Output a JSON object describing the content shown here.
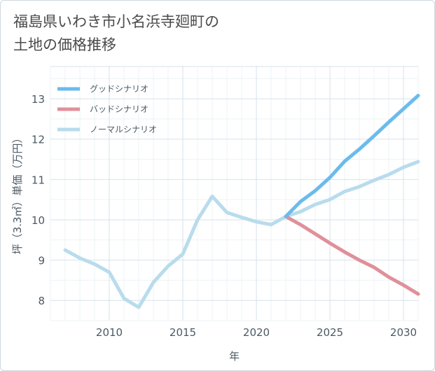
{
  "page": {
    "title": "福島県いわき市小名浜寺廻町の\n土地の価格推移"
  },
  "chart_data": {
    "type": "line",
    "title": "福島県いわき市小名浜寺廻町の\n土地の価格推移",
    "xlabel": "年",
    "ylabel": "坪（3.3㎡）単価（万円）",
    "xlim": [
      2006,
      2031
    ],
    "ylim": [
      7.5,
      13.8
    ],
    "xticks": [
      2010,
      2015,
      2020,
      2025,
      2030
    ],
    "yticks": [
      8,
      9,
      10,
      11,
      12,
      13
    ],
    "grid": true,
    "legend_position": "top-left",
    "series": [
      {
        "name": "グッドシナリオ",
        "color": "#6bbbec",
        "x": [
          2022,
          2023,
          2024,
          2025,
          2026,
          2027,
          2028,
          2029,
          2030,
          2031
        ],
        "values": [
          10.08,
          10.45,
          10.72,
          11.05,
          11.45,
          11.75,
          12.08,
          12.42,
          12.75,
          13.08
        ]
      },
      {
        "name": "バッドシナリオ",
        "color": "#e0909a",
        "x": [
          2022,
          2023,
          2024,
          2025,
          2026,
          2027,
          2028,
          2029,
          2030,
          2031
        ],
        "values": [
          10.08,
          9.88,
          9.65,
          9.42,
          9.2,
          9.0,
          8.82,
          8.58,
          8.38,
          8.16
        ]
      },
      {
        "name": "ノーマルシナリオ",
        "color": "#b8dcec",
        "x": [
          2007,
          2008,
          2009,
          2010,
          2011,
          2012,
          2013,
          2014,
          2015,
          2016,
          2017,
          2018,
          2019,
          2020,
          2021,
          2022,
          2023,
          2024,
          2025,
          2026,
          2027,
          2028,
          2029,
          2030,
          2031
        ],
        "values": [
          9.25,
          9.05,
          8.9,
          8.7,
          8.05,
          7.83,
          8.45,
          8.85,
          9.15,
          10.0,
          10.58,
          10.18,
          10.06,
          9.95,
          9.88,
          10.08,
          10.2,
          10.38,
          10.5,
          10.7,
          10.82,
          10.98,
          11.12,
          11.3,
          11.44
        ]
      }
    ]
  }
}
